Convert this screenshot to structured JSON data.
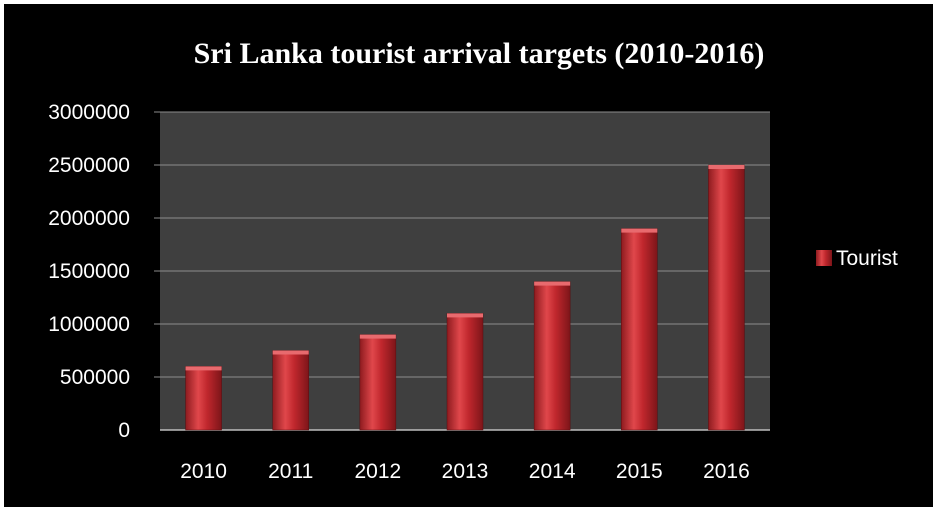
{
  "chart_data": {
    "type": "bar",
    "title": "Sri Lanka tourist arrival targets (2010-2016)",
    "categories": [
      "2010",
      "2011",
      "2012",
      "2013",
      "2014",
      "2015",
      "2016"
    ],
    "series": [
      {
        "name": "Tourist",
        "values": [
          600000,
          750000,
          900000,
          1100000,
          1400000,
          1900000,
          2500000
        ]
      }
    ],
    "ylim": [
      0,
      3000000
    ],
    "yticks": [
      "0",
      "500000",
      "1000000",
      "1500000",
      "2000000",
      "2500000",
      "3000000"
    ],
    "grid": true,
    "legend_position": "right",
    "colors": {
      "background": "#000000",
      "plot_area": "#3f3f3f",
      "gridline": "#8c8c8c",
      "bar": "#c0272d",
      "text": "#ffffff"
    }
  }
}
